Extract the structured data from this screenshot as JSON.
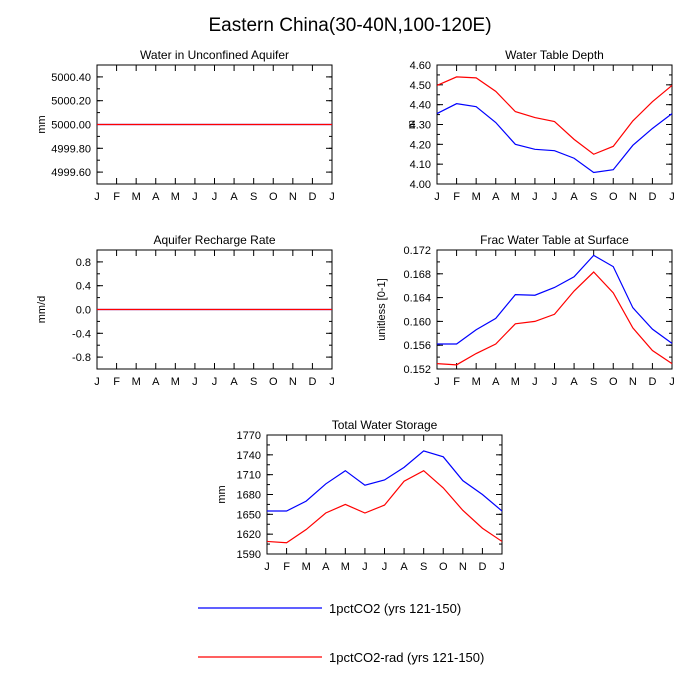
{
  "title": "Eastern China(30-40N,100-120E)",
  "months": [
    "J",
    "F",
    "M",
    "A",
    "M",
    "J",
    "J",
    "A",
    "S",
    "O",
    "N",
    "D",
    "J"
  ],
  "colors": {
    "blue": "#0000ff",
    "red": "#ff0000",
    "axis": "#000000"
  },
  "legend": {
    "entries": [
      {
        "label": "1pctCO2 (yrs 121-150)",
        "color": "#0000ff"
      },
      {
        "label": "1pctCO2-rad (yrs 121-150)",
        "color": "#ff0000"
      }
    ]
  },
  "chart_data": [
    {
      "type": "line",
      "title": "Water in Unconfined Aquifer",
      "ylabel": "mm",
      "ylim": [
        4999.5,
        5000.5
      ],
      "yticks": [
        "5000.40",
        "5000.20",
        "5000.00",
        "4999.80",
        "4999.60"
      ],
      "ytick_values": [
        5000.4,
        5000.2,
        5000.0,
        4999.8,
        4999.6
      ],
      "categories": [
        "J",
        "F",
        "M",
        "A",
        "M",
        "J",
        "J",
        "A",
        "S",
        "O",
        "N",
        "D",
        "J"
      ],
      "series": [
        {
          "color": "#0000ff",
          "values": [
            5000,
            5000,
            5000,
            5000,
            5000,
            5000,
            5000,
            5000,
            5000,
            5000,
            5000,
            5000,
            5000
          ]
        },
        {
          "color": "#ff0000",
          "values": [
            5000,
            5000,
            5000,
            5000,
            5000,
            5000,
            5000,
            5000,
            5000,
            5000,
            5000,
            5000,
            5000
          ]
        }
      ]
    },
    {
      "type": "line",
      "title": "Water Table Depth",
      "ylabel": "m",
      "ylim": [
        4.0,
        4.6
      ],
      "yticks": [
        "4.60",
        "4.50",
        "4.40",
        "4.30",
        "4.20",
        "4.10",
        "4.00"
      ],
      "ytick_values": [
        4.6,
        4.5,
        4.4,
        4.3,
        4.2,
        4.1,
        4.0
      ],
      "categories": [
        "J",
        "F",
        "M",
        "A",
        "M",
        "J",
        "J",
        "A",
        "S",
        "O",
        "N",
        "D",
        "J"
      ],
      "series": [
        {
          "color": "#0000ff",
          "values": [
            4.355,
            4.405,
            4.39,
            4.31,
            4.2,
            4.175,
            4.168,
            4.13,
            4.058,
            4.072,
            4.195,
            4.28,
            4.355
          ]
        },
        {
          "color": "#ff0000",
          "values": [
            4.497,
            4.54,
            4.535,
            4.467,
            4.365,
            4.335,
            4.315,
            4.225,
            4.15,
            4.19,
            4.318,
            4.415,
            4.497
          ]
        }
      ]
    },
    {
      "type": "line",
      "title": "Aquifer Recharge Rate",
      "ylabel": "mm/d",
      "ylim": [
        -1.0,
        1.0
      ],
      "yticks": [
        "0.8",
        "0.4",
        "0.0",
        "-0.4",
        "-0.8"
      ],
      "ytick_values": [
        0.8,
        0.4,
        0.0,
        -0.4,
        -0.8
      ],
      "categories": [
        "J",
        "F",
        "M",
        "A",
        "M",
        "J",
        "J",
        "A",
        "S",
        "O",
        "N",
        "D",
        "J"
      ],
      "series": [
        {
          "color": "#0000ff",
          "values": [
            0,
            0,
            0,
            0,
            0,
            0,
            0,
            0,
            0,
            0,
            0,
            0,
            0
          ]
        },
        {
          "color": "#ff0000",
          "values": [
            0,
            0,
            0,
            0,
            0,
            0,
            0,
            0,
            0,
            0,
            0,
            0,
            0
          ]
        }
      ]
    },
    {
      "type": "line",
      "title": "Frac Water Table at Surface",
      "ylabel": "unitless [0-1]",
      "ylim": [
        0.152,
        0.172
      ],
      "yticks": [
        "0.172",
        "0.168",
        "0.164",
        "0.160",
        "0.156",
        "0.152"
      ],
      "ytick_values": [
        0.172,
        0.168,
        0.164,
        0.16,
        0.156,
        0.152
      ],
      "categories": [
        "J",
        "F",
        "M",
        "A",
        "M",
        "J",
        "J",
        "A",
        "S",
        "O",
        "N",
        "D",
        "J"
      ],
      "series": [
        {
          "color": "#0000ff",
          "values": [
            0.1562,
            0.1562,
            0.1586,
            0.1605,
            0.1645,
            0.1644,
            0.1657,
            0.1675,
            0.1711,
            0.1692,
            0.1623,
            0.1587,
            0.1563
          ]
        },
        {
          "color": "#ff0000",
          "values": [
            0.1529,
            0.1527,
            0.1546,
            0.1562,
            0.1596,
            0.16,
            0.1612,
            0.1651,
            0.1683,
            0.1648,
            0.1589,
            0.1551,
            0.1529
          ]
        }
      ]
    },
    {
      "type": "line",
      "title": "Total Water Storage",
      "ylabel": "mm",
      "ylim": [
        1590,
        1770
      ],
      "yticks": [
        "1770",
        "1740",
        "1710",
        "1680",
        "1650",
        "1620",
        "1590"
      ],
      "ytick_values": [
        1770,
        1740,
        1710,
        1680,
        1650,
        1620,
        1590
      ],
      "categories": [
        "J",
        "F",
        "M",
        "A",
        "M",
        "J",
        "J",
        "A",
        "S",
        "O",
        "N",
        "D",
        "J"
      ],
      "series": [
        {
          "color": "#0000ff",
          "values": [
            1655,
            1655,
            1670,
            1696,
            1716,
            1694,
            1702,
            1721,
            1746,
            1737,
            1701,
            1680,
            1655
          ]
        },
        {
          "color": "#ff0000",
          "values": [
            1609,
            1607,
            1627,
            1652,
            1665,
            1652,
            1664,
            1700,
            1716,
            1690,
            1656,
            1629,
            1609
          ]
        }
      ]
    }
  ]
}
